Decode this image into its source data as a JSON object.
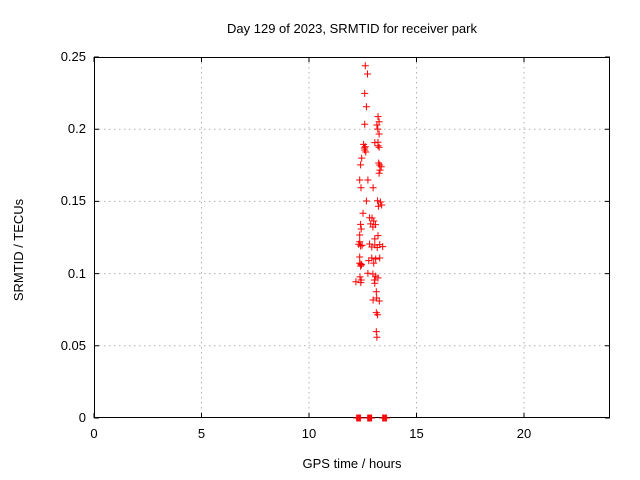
{
  "title": "Day 129 of 2023, SRMTID for receiver park",
  "xlabel": "GPS time / hours",
  "ylabel": "SRMTID / TECUs",
  "chart_data": {
    "type": "scatter",
    "title": "Day 129 of 2023, SRMTID for receiver park",
    "xlabel": "GPS time / hours",
    "ylabel": "SRMTID / TECUs",
    "xlim": [
      0,
      24
    ],
    "ylim": [
      0,
      0.25
    ],
    "grid": true,
    "legend": "none",
    "marker": "plus",
    "marker_color": "#ff0000",
    "border_color": "#000000",
    "grid_color": "#b0b0b0",
    "xticks": [
      {
        "value": 0,
        "label": "0"
      },
      {
        "value": 5,
        "label": "5"
      },
      {
        "value": 10,
        "label": "10"
      },
      {
        "value": 15,
        "label": "15"
      },
      {
        "value": 20,
        "label": "20"
      }
    ],
    "yticks": [
      {
        "value": 0,
        "label": "0"
      },
      {
        "value": 0.05,
        "label": "0.05"
      },
      {
        "value": 0.1,
        "label": "0.1"
      },
      {
        "value": 0.15,
        "label": "0.15"
      },
      {
        "value": 0.2,
        "label": "0.2"
      },
      {
        "value": 0.25,
        "label": "0.25"
      }
    ],
    "points": [
      [
        12.62,
        0.244
      ],
      [
        12.72,
        0.2382
      ],
      [
        12.59,
        0.2248
      ],
      [
        12.67,
        0.2156
      ],
      [
        13.21,
        0.2087
      ],
      [
        13.26,
        0.2052
      ],
      [
        13.16,
        0.2029
      ],
      [
        12.59,
        0.2034
      ],
      [
        13.2,
        0.2001
      ],
      [
        13.26,
        0.1967
      ],
      [
        13.06,
        0.1907
      ],
      [
        13.21,
        0.1909
      ],
      [
        13.21,
        0.1886
      ],
      [
        13.26,
        0.1875
      ],
      [
        12.54,
        0.1895
      ],
      [
        12.62,
        0.1879
      ],
      [
        12.57,
        0.187
      ],
      [
        12.59,
        0.1856
      ],
      [
        12.64,
        0.1842
      ],
      [
        12.45,
        0.18
      ],
      [
        13.24,
        0.1766
      ],
      [
        13.29,
        0.1752
      ],
      [
        13.36,
        0.174
      ],
      [
        13.3,
        0.1717
      ],
      [
        13.26,
        0.1695
      ],
      [
        12.4,
        0.1753
      ],
      [
        12.36,
        0.1648
      ],
      [
        12.74,
        0.1648
      ],
      [
        12.42,
        0.1595
      ],
      [
        12.98,
        0.1595
      ],
      [
        12.67,
        0.1503
      ],
      [
        13.19,
        0.1505
      ],
      [
        13.32,
        0.1496
      ],
      [
        13.38,
        0.1475
      ],
      [
        13.23,
        0.1466
      ],
      [
        12.51,
        0.1418
      ],
      [
        12.82,
        0.1387
      ],
      [
        12.93,
        0.1385
      ],
      [
        13.01,
        0.1364
      ],
      [
        12.87,
        0.1344
      ],
      [
        13.09,
        0.1339
      ],
      [
        12.97,
        0.1323
      ],
      [
        12.4,
        0.1341
      ],
      [
        12.43,
        0.1309
      ],
      [
        12.36,
        0.1267
      ],
      [
        13.21,
        0.1263
      ],
      [
        13.06,
        0.124
      ],
      [
        12.36,
        0.1221
      ],
      [
        12.31,
        0.1203
      ],
      [
        12.4,
        0.1191
      ],
      [
        12.47,
        0.1196
      ],
      [
        12.82,
        0.1205
      ],
      [
        12.92,
        0.1184
      ],
      [
        13.06,
        0.1198
      ],
      [
        13.17,
        0.1181
      ],
      [
        13.29,
        0.1201
      ],
      [
        13.43,
        0.1187
      ],
      [
        12.36,
        0.1115
      ],
      [
        12.78,
        0.109
      ],
      [
        12.92,
        0.1108
      ],
      [
        13.01,
        0.1073
      ],
      [
        13.1,
        0.1101
      ],
      [
        13.29,
        0.1108
      ],
      [
        12.36,
        0.1073
      ],
      [
        12.4,
        0.1052
      ],
      [
        12.42,
        0.1066
      ],
      [
        12.44,
        0.106
      ],
      [
        12.74,
        0.1002
      ],
      [
        12.97,
        0.0997
      ],
      [
        13.04,
        0.0956
      ],
      [
        13.1,
        0.0983
      ],
      [
        13.21,
        0.097
      ],
      [
        12.18,
        0.0944
      ],
      [
        12.37,
        0.0977
      ],
      [
        12.41,
        0.0938
      ],
      [
        12.43,
        0.0956
      ],
      [
        13.06,
        0.0933
      ],
      [
        13.13,
        0.0875
      ],
      [
        12.98,
        0.0817
      ],
      [
        13.15,
        0.0831
      ],
      [
        13.27,
        0.081
      ],
      [
        13.13,
        0.073
      ],
      [
        13.19,
        0.0715
      ],
      [
        13.13,
        0.0598
      ],
      [
        13.16,
        0.0559
      ],
      [
        12.22,
        0
      ],
      [
        12.26,
        0
      ],
      [
        12.31,
        0
      ],
      [
        12.35,
        0
      ],
      [
        12.4,
        0
      ],
      [
        12.73,
        0
      ],
      [
        12.77,
        0
      ],
      [
        12.82,
        0
      ],
      [
        12.87,
        0
      ],
      [
        12.91,
        0
      ],
      [
        13.43,
        0
      ],
      [
        13.47,
        0
      ],
      [
        13.52,
        0
      ],
      [
        13.56,
        0
      ],
      [
        13.61,
        0
      ]
    ]
  }
}
